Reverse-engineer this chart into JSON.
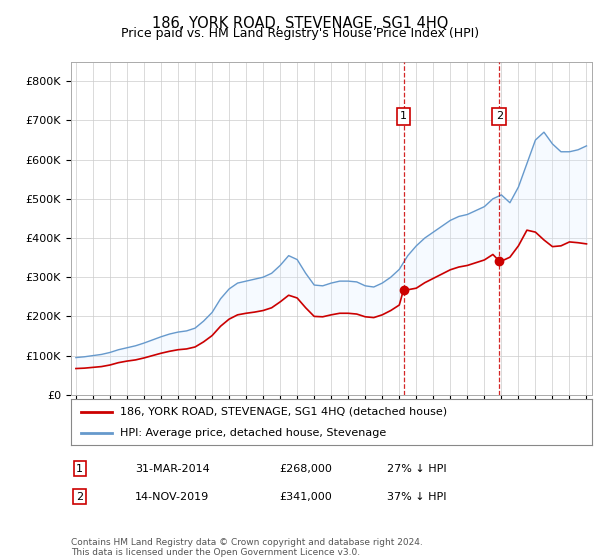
{
  "title": "186, YORK ROAD, STEVENAGE, SG1 4HQ",
  "subtitle": "Price paid vs. HM Land Registry's House Price Index (HPI)",
  "red_label": "186, YORK ROAD, STEVENAGE, SG1 4HQ (detached house)",
  "blue_label": "HPI: Average price, detached house, Stevenage",
  "annotation1": {
    "num": "1",
    "date": "31-MAR-2014",
    "price": "£268,000",
    "pct": "27% ↓ HPI",
    "x_year": 2014.25,
    "red_y": 268000
  },
  "annotation2": {
    "num": "2",
    "date": "14-NOV-2019",
    "price": "£341,000",
    "pct": "37% ↓ HPI",
    "x_year": 2019.88,
    "red_y": 341000
  },
  "footer": "Contains HM Land Registry data © Crown copyright and database right 2024.\nThis data is licensed under the Open Government Licence v3.0.",
  "ylim": [
    0,
    850000
  ],
  "yticks": [
    0,
    100000,
    200000,
    300000,
    400000,
    500000,
    600000,
    700000,
    800000
  ],
  "ytick_labels": [
    "£0",
    "£100K",
    "£200K",
    "£300K",
    "£400K",
    "£500K",
    "£600K",
    "£700K",
    "£800K"
  ],
  "xlim": [
    1994.7,
    2025.3
  ],
  "xticks": [
    1995,
    1996,
    1997,
    1998,
    1999,
    2000,
    2001,
    2002,
    2003,
    2004,
    2005,
    2006,
    2007,
    2008,
    2009,
    2010,
    2011,
    2012,
    2013,
    2014,
    2015,
    2016,
    2017,
    2018,
    2019,
    2020,
    2021,
    2022,
    2023,
    2024,
    2025
  ],
  "red_color": "#cc0000",
  "blue_color": "#6699cc",
  "blue_fill": "#ddeeff",
  "grid_color": "#cccccc",
  "bg_color": "#ffffff"
}
